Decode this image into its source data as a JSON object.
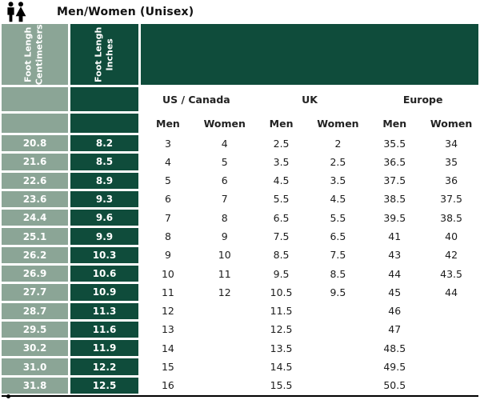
{
  "title": {
    "text": "Men/Women (Unisex)"
  },
  "colors": {
    "sage": "#8BA596",
    "dark_green": "#0F4C3B",
    "text_dark": "#1C1C1C"
  },
  "chart_data": {
    "type": "table",
    "title": "Men/Women (Unisex)",
    "row_header_columns": [
      {
        "line1": "Foot Lengh",
        "line2": "Centimeters"
      },
      {
        "line1": "Foot Lengh",
        "line2": "Inches"
      }
    ],
    "column_groups": [
      "US / Canada",
      "UK",
      "Europe"
    ],
    "sub_headers": [
      "Men",
      "Women",
      "Men",
      "Women",
      "Men",
      "Women"
    ],
    "rows": [
      {
        "cm": "20.8",
        "in": "8.2",
        "values": [
          "3",
          "4",
          "2.5",
          "2",
          "35.5",
          "34"
        ]
      },
      {
        "cm": "21.6",
        "in": "8.5",
        "values": [
          "4",
          "5",
          "3.5",
          "2.5",
          "36.5",
          "35"
        ]
      },
      {
        "cm": "22.6",
        "in": "8.9",
        "values": [
          "5",
          "6",
          "4.5",
          "3.5",
          "37.5",
          "36"
        ]
      },
      {
        "cm": "23.6",
        "in": "9.3",
        "values": [
          "6",
          "7",
          "5.5",
          "4.5",
          "38.5",
          "37.5"
        ]
      },
      {
        "cm": "24.4",
        "in": "9.6",
        "values": [
          "7",
          "8",
          "6.5",
          "5.5",
          "39.5",
          "38.5"
        ]
      },
      {
        "cm": "25.1",
        "in": "9.9",
        "values": [
          "8",
          "9",
          "7.5",
          "6.5",
          "41",
          "40"
        ]
      },
      {
        "cm": "26.2",
        "in": "10.3",
        "values": [
          "9",
          "10",
          "8.5",
          "7.5",
          "43",
          "42"
        ]
      },
      {
        "cm": "26.9",
        "in": "10.6",
        "values": [
          "10",
          "11",
          "9.5",
          "8.5",
          "44",
          "43.5"
        ]
      },
      {
        "cm": "27.7",
        "in": "10.9",
        "values": [
          "11",
          "12",
          "10.5",
          "9.5",
          "45",
          "44"
        ]
      },
      {
        "cm": "28.7",
        "in": "11.3",
        "values": [
          "12",
          "",
          "11.5",
          "",
          "46",
          ""
        ]
      },
      {
        "cm": "29.5",
        "in": "11.6",
        "values": [
          "13",
          "",
          "12.5",
          "",
          "47",
          ""
        ]
      },
      {
        "cm": "30.2",
        "in": "11.9",
        "values": [
          "14",
          "",
          "13.5",
          "",
          "48.5",
          ""
        ]
      },
      {
        "cm": "31.0",
        "in": "12.2",
        "values": [
          "15",
          "",
          "14.5",
          "",
          "49.5",
          ""
        ]
      },
      {
        "cm": "31.8",
        "in": "12.5",
        "values": [
          "16",
          "",
          "15.5",
          "",
          "50.5",
          ""
        ]
      }
    ]
  }
}
